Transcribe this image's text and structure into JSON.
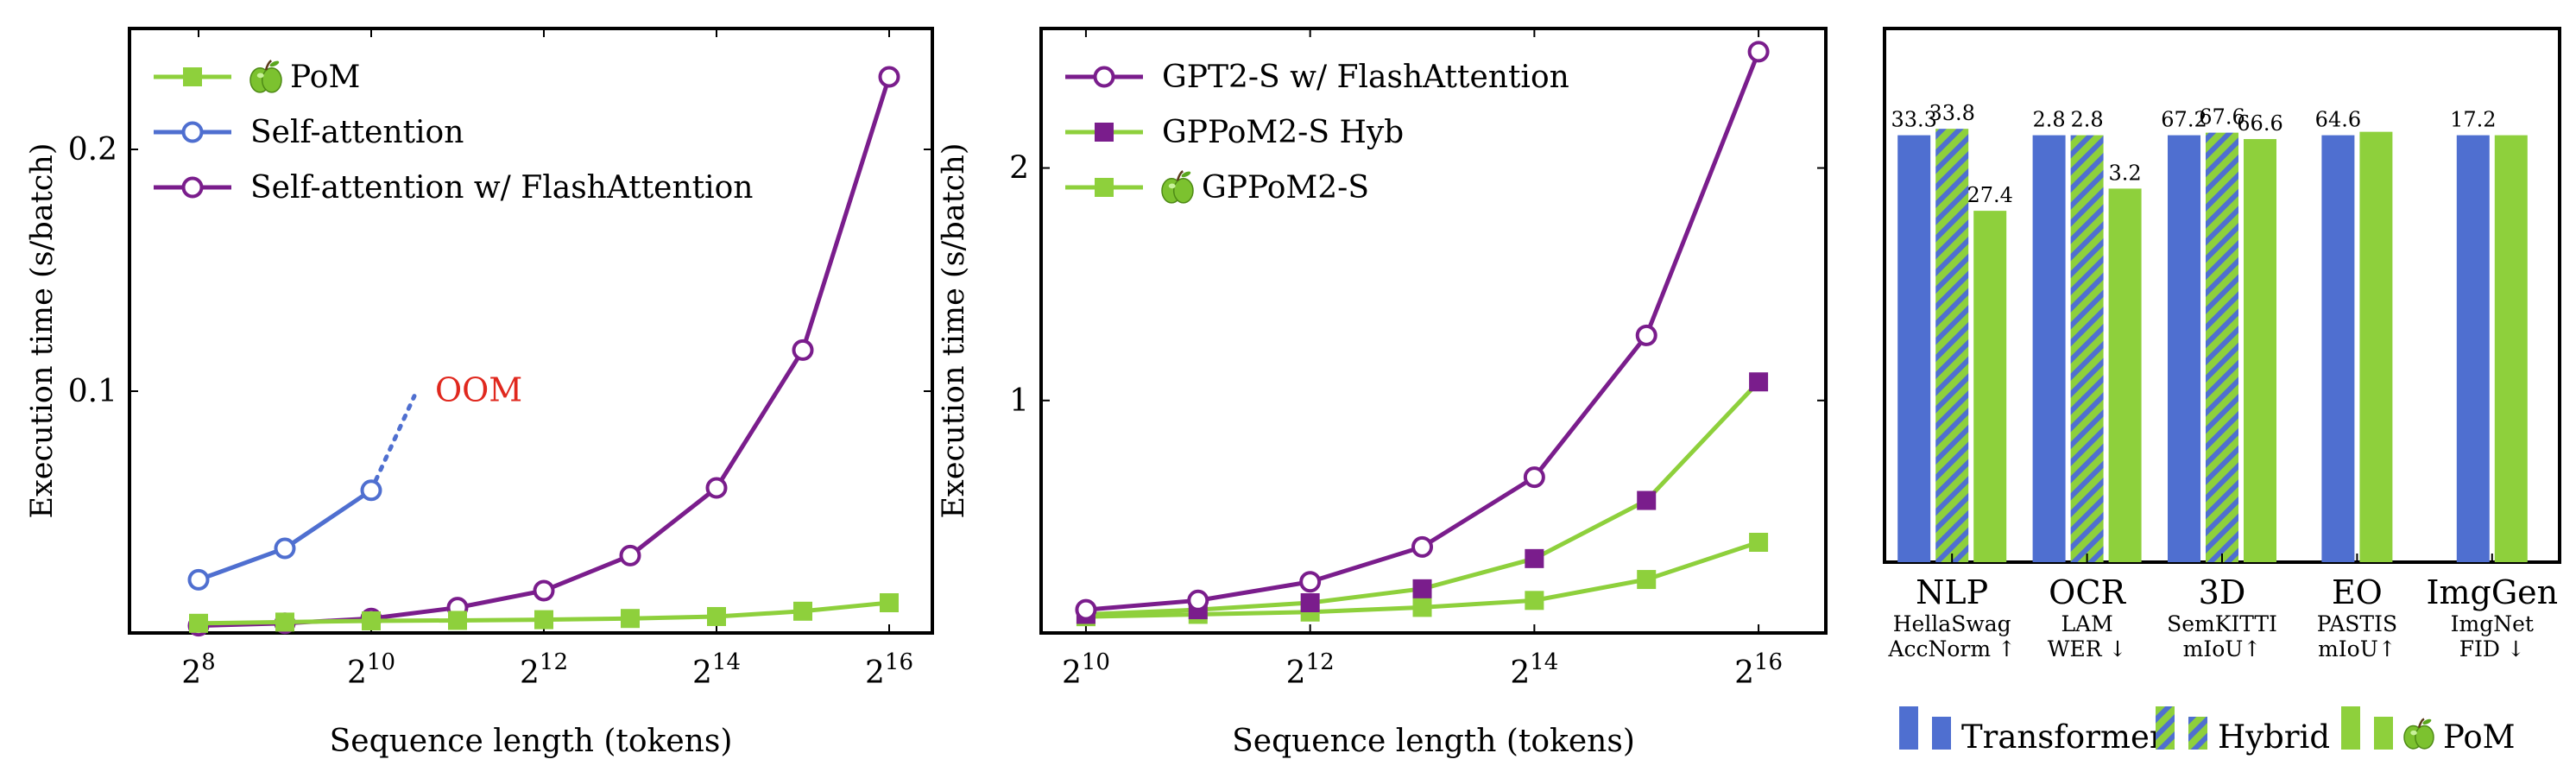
{
  "chart_data": [
    {
      "type": "line",
      "xlabel": "Sequence length (tokens)",
      "ylabel": "Execution time (s/batch)",
      "x": [
        8,
        9,
        10,
        11,
        12,
        13,
        14,
        15,
        16
      ],
      "xtick_labels": [
        "2^8",
        "2^10",
        "2^12",
        "2^14",
        "2^16"
      ],
      "xtick_values": [
        8,
        10,
        12,
        14,
        16
      ],
      "ytick_labels": [
        "0.1",
        "0.2"
      ],
      "ytick_values": [
        0.1,
        0.2
      ],
      "xlim": [
        7.2,
        16.5
      ],
      "ylim": [
        0,
        0.25
      ],
      "legend_position": "top-left",
      "annotation": "OOM",
      "series": [
        {
          "name": "PoM",
          "legend_icon": "apple-icon",
          "marker": "square",
          "color": "#8ed03c",
          "x": [
            8,
            9,
            10,
            11,
            12,
            13,
            14,
            15,
            16
          ],
          "values": [
            0.004,
            0.0045,
            0.005,
            0.0052,
            0.0055,
            0.006,
            0.0068,
            0.009,
            0.0125
          ]
        },
        {
          "name": "Self-attention",
          "marker": "circle-open",
          "color": "#4f6fd0",
          "x": [
            8,
            9,
            10
          ],
          "values": [
            0.022,
            0.035,
            0.059
          ],
          "oom_extension": {
            "x": [
              10,
              10.5
            ],
            "values": [
              0.059,
              0.098
            ]
          }
        },
        {
          "name": "Self-attention w/ FlashAttention",
          "marker": "circle-open",
          "color": "#7a1d8c",
          "x": [
            8,
            9,
            10,
            11,
            12,
            13,
            14,
            15,
            16
          ],
          "values": [
            0.003,
            0.004,
            0.006,
            0.0105,
            0.0175,
            0.032,
            0.06,
            0.117,
            0.23
          ]
        }
      ]
    },
    {
      "type": "line",
      "xlabel": "Sequence length (tokens)",
      "ylabel": "Execution time (s/batch)",
      "x": [
        10,
        11,
        12,
        13,
        14,
        15,
        16
      ],
      "xtick_labels": [
        "2^10",
        "2^12",
        "2^14",
        "2^16"
      ],
      "xtick_values": [
        10,
        12,
        14,
        16
      ],
      "ytick_labels": [
        "1",
        "2"
      ],
      "ytick_values": [
        1,
        2
      ],
      "xlim": [
        9.6,
        16.6
      ],
      "ylim": [
        0,
        2.6
      ],
      "legend_position": "top-left",
      "series": [
        {
          "name": "GPT2-S w/ FlashAttention",
          "marker": "circle-open",
          "color": "#7a1d8c",
          "x": [
            10,
            11,
            12,
            13,
            14,
            15,
            16
          ],
          "values": [
            0.1,
            0.14,
            0.22,
            0.37,
            0.67,
            1.28,
            2.5
          ]
        },
        {
          "name": "GPPoM2-S Hyb",
          "marker": "square",
          "color": "#8ed03c",
          "marker_color": "#7a1d8c",
          "x": [
            10,
            11,
            12,
            13,
            14,
            15,
            16
          ],
          "values": [
            0.08,
            0.1,
            0.13,
            0.19,
            0.32,
            0.57,
            1.08
          ]
        },
        {
          "name": "GPPoM2-S",
          "legend_icon": "apple-icon",
          "marker": "square",
          "color": "#8ed03c",
          "x": [
            10,
            11,
            12,
            13,
            14,
            15,
            16
          ],
          "values": [
            0.07,
            0.08,
            0.09,
            0.11,
            0.14,
            0.23,
            0.39
          ]
        }
      ]
    },
    {
      "type": "bar",
      "categories": [
        "NLP",
        "OCR",
        "3D",
        "EO",
        "ImgGen"
      ],
      "category_sublabels": [
        [
          "HellaSwag",
          "AccNorm ↑"
        ],
        [
          "LAM",
          "WER ↓"
        ],
        [
          "SemKITTI",
          "mIoU↑"
        ],
        [
          "PASTIS",
          "mIoU↑"
        ],
        [
          "ImgNet",
          "FID ↓"
        ]
      ],
      "ylim": [
        0,
        1.25
      ],
      "series": [
        {
          "name": "Transformer",
          "color": "#4f6fd0",
          "pattern": "solid",
          "heights": [
            1.0,
            1.0,
            1.0,
            1.0,
            1.0
          ],
          "labels": [
            "33.3",
            "2.8",
            "67.2",
            "64.6",
            "17.2"
          ]
        },
        {
          "name": "Hybrid",
          "color": "#8ed03c",
          "pattern": "hatched",
          "heights": [
            1.015,
            1.0,
            1.006,
            null,
            null
          ],
          "labels": [
            "33.8",
            "2.8",
            "67.6",
            null,
            null
          ]
        },
        {
          "name": "PoM",
          "legend_icon": "apple-icon",
          "color": "#8ed03c",
          "pattern": "solid",
          "heights": [
            0.823,
            0.875,
            0.991,
            1.008,
            1.0
          ],
          "labels": [
            "27.4",
            "3.2",
            "66.6",
            null,
            null
          ]
        }
      ],
      "legend": [
        {
          "name": "Transformer"
        },
        {
          "name": "Hybrid"
        },
        {
          "name": "PoM",
          "icon": "apple-icon"
        }
      ]
    }
  ]
}
